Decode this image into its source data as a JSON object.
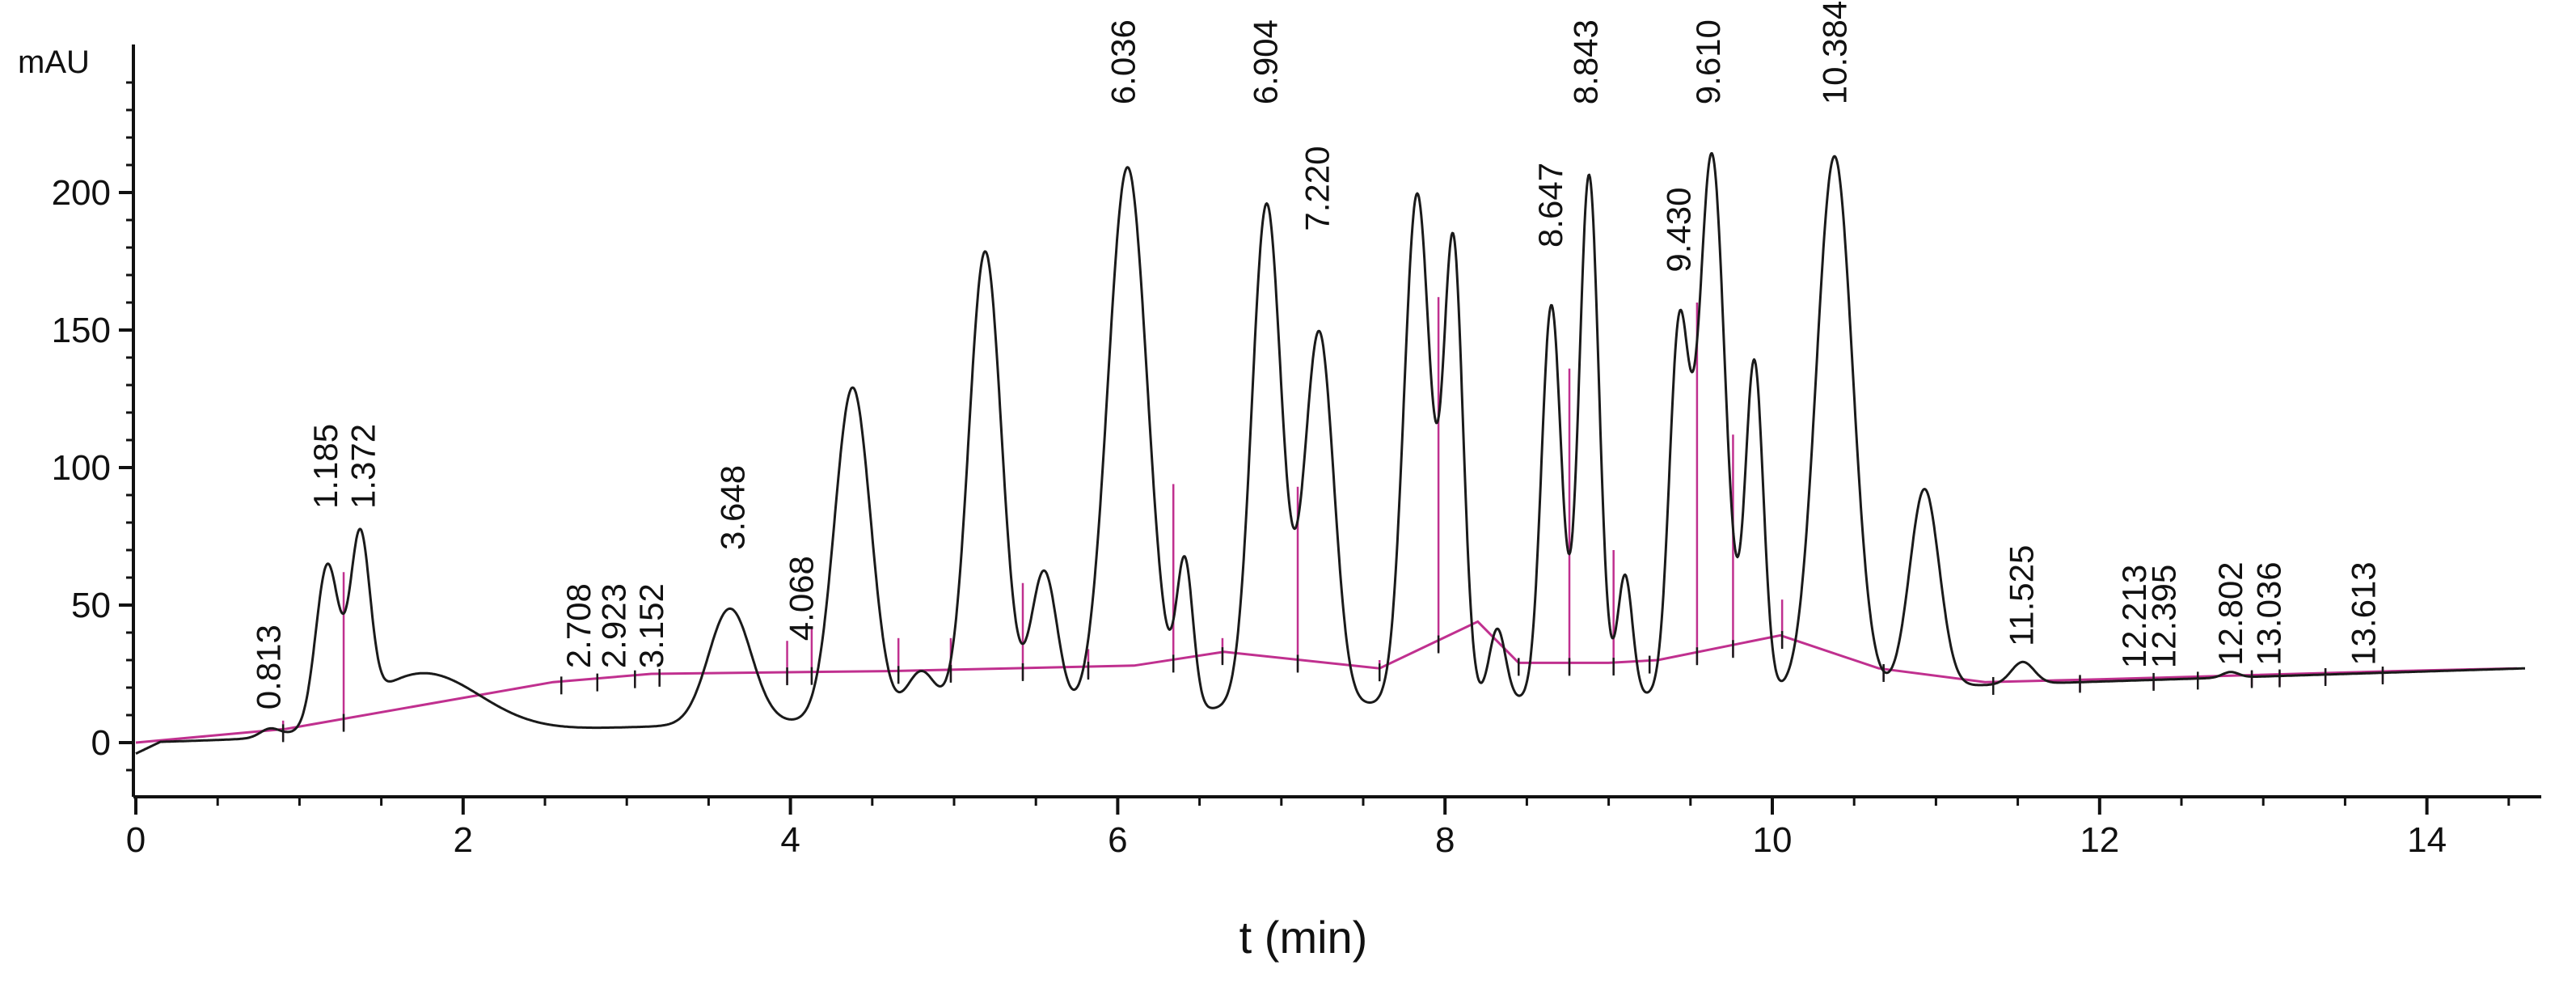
{
  "chart_data": {
    "type": "line",
    "title": "",
    "xlabel": "t (min)",
    "ylabel": "mAU",
    "xlim": [
      0,
      14.6
    ],
    "ylim": [
      -12,
      250
    ],
    "x_ticks": [
      "0",
      "2",
      "4",
      "6",
      "8",
      "10",
      "12",
      "14"
    ],
    "y_ticks": [
      "0",
      "50",
      "100",
      "150",
      "200"
    ],
    "grid": false,
    "legend": "none",
    "colors": {
      "trace": "#1a1a1a",
      "baseline": "#c0308f",
      "axis": "#111111"
    },
    "trace": {
      "baseline_start": 0,
      "baseline_end": 27,
      "peaks": [
        {
          "rt": 0.82,
          "height": 3,
          "width": 0.06
        },
        {
          "rt": 1.17,
          "height": 57,
          "width": 0.07
        },
        {
          "rt": 1.37,
          "height": 62,
          "width": 0.06
        },
        {
          "rt": 1.75,
          "height": 22,
          "width": 0.35
        },
        {
          "rt": 3.63,
          "height": 42,
          "width": 0.13
        },
        {
          "rt": 4.38,
          "height": 121,
          "width": 0.11
        },
        {
          "rt": 4.8,
          "height": 17,
          "width": 0.09
        },
        {
          "rt": 5.19,
          "height": 169,
          "width": 0.1
        },
        {
          "rt": 5.55,
          "height": 52,
          "width": 0.08
        },
        {
          "rt": 6.06,
          "height": 198,
          "width": 0.12
        },
        {
          "rt": 6.41,
          "height": 53,
          "width": 0.05
        },
        {
          "rt": 6.91,
          "height": 183,
          "width": 0.09
        },
        {
          "rt": 7.23,
          "height": 136,
          "width": 0.09
        },
        {
          "rt": 7.83,
          "height": 185,
          "width": 0.08
        },
        {
          "rt": 8.05,
          "height": 166,
          "width": 0.06
        },
        {
          "rt": 8.32,
          "height": 26,
          "width": 0.05
        },
        {
          "rt": 8.65,
          "height": 143,
          "width": 0.06
        },
        {
          "rt": 8.88,
          "height": 190,
          "width": 0.06
        },
        {
          "rt": 9.1,
          "height": 44,
          "width": 0.045
        },
        {
          "rt": 9.43,
          "height": 130,
          "width": 0.06
        },
        {
          "rt": 9.63,
          "height": 196,
          "width": 0.08
        },
        {
          "rt": 9.89,
          "height": 120,
          "width": 0.055
        },
        {
          "rt": 10.38,
          "height": 194,
          "width": 0.11
        },
        {
          "rt": 10.93,
          "height": 72,
          "width": 0.09
        },
        {
          "rt": 11.53,
          "height": 8,
          "width": 0.07
        },
        {
          "rt": 12.8,
          "height": 2,
          "width": 0.05
        }
      ]
    },
    "integration_baseline": [
      [
        0.0,
        0
      ],
      [
        0.92,
        5
      ],
      [
        2.55,
        22
      ],
      [
        3.15,
        25
      ],
      [
        4.6,
        26
      ],
      [
        6.1,
        28
      ],
      [
        6.65,
        33
      ],
      [
        7.6,
        27
      ],
      [
        8.2,
        44
      ],
      [
        8.45,
        29
      ],
      [
        9.0,
        29
      ],
      [
        9.3,
        30
      ],
      [
        10.05,
        39
      ],
      [
        10.65,
        27
      ],
      [
        11.3,
        22
      ],
      [
        12.0,
        23
      ],
      [
        13.8,
        26
      ],
      [
        14.55,
        27
      ]
    ],
    "drop_lines": [
      {
        "t": 0.9,
        "top": 8
      },
      {
        "t": 1.27,
        "top": 62
      },
      {
        "t": 2.6,
        "top": 23
      },
      {
        "t": 2.82,
        "top": 25
      },
      {
        "t": 3.05,
        "top": 25
      },
      {
        "t": 3.2,
        "top": 25
      },
      {
        "t": 3.98,
        "top": 37
      },
      {
        "t": 4.13,
        "top": 42
      },
      {
        "t": 4.66,
        "top": 38
      },
      {
        "t": 4.98,
        "top": 38
      },
      {
        "t": 5.42,
        "top": 58
      },
      {
        "t": 5.82,
        "top": 34
      },
      {
        "t": 6.34,
        "top": 94
      },
      {
        "t": 6.64,
        "top": 38
      },
      {
        "t": 7.1,
        "top": 93
      },
      {
        "t": 7.6,
        "top": 30
      },
      {
        "t": 7.96,
        "top": 162
      },
      {
        "t": 8.45,
        "top": 30
      },
      {
        "t": 8.76,
        "top": 136
      },
      {
        "t": 9.03,
        "top": 70
      },
      {
        "t": 9.25,
        "top": 31
      },
      {
        "t": 9.54,
        "top": 160
      },
      {
        "t": 9.76,
        "top": 112
      },
      {
        "t": 10.06,
        "top": 52
      },
      {
        "t": 10.68,
        "top": 28
      },
      {
        "t": 11.35,
        "top": 22
      },
      {
        "t": 11.88,
        "top": 24
      },
      {
        "t": 12.33,
        "top": 23
      },
      {
        "t": 12.6,
        "top": 24
      },
      {
        "t": 12.93,
        "top": 26
      },
      {
        "t": 13.1,
        "top": 26
      },
      {
        "t": 13.38,
        "top": 27
      },
      {
        "t": 13.73,
        "top": 27
      }
    ],
    "peak_labels": [
      {
        "text": "0.813",
        "t": 0.813,
        "y": 12
      },
      {
        "text": "1.185",
        "t": 1.16,
        "y": 85
      },
      {
        "text": "1.372",
        "t": 1.39,
        "y": 85
      },
      {
        "text": "2.708",
        "t": 2.708,
        "y": 27
      },
      {
        "text": "2.923",
        "t": 2.923,
        "y": 27
      },
      {
        "text": "3.152",
        "t": 3.152,
        "y": 27
      },
      {
        "text": "3.648",
        "t": 3.648,
        "y": 70
      },
      {
        "text": "4.068",
        "t": 4.068,
        "y": 37
      },
      {
        "text": "6.036",
        "t": 6.036,
        "y": 232
      },
      {
        "text": "6.904",
        "t": 6.904,
        "y": 232
      },
      {
        "text": "7.220",
        "t": 7.22,
        "y": 186
      },
      {
        "text": "8.647",
        "t": 8.647,
        "y": 180
      },
      {
        "text": "8.843",
        "t": 8.86,
        "y": 232
      },
      {
        "text": "9.430",
        "t": 9.43,
        "y": 171
      },
      {
        "text": "9.610",
        "t": 9.61,
        "y": 232
      },
      {
        "text": "10.384",
        "t": 10.384,
        "y": 232
      },
      {
        "text": "11.525",
        "t": 11.525,
        "y": 35
      },
      {
        "text": "12.213",
        "t": 12.213,
        "y": 27
      },
      {
        "text": "12.395",
        "t": 12.395,
        "y": 27
      },
      {
        "text": "12.802",
        "t": 12.802,
        "y": 28
      },
      {
        "text": "13.036",
        "t": 13.036,
        "y": 28
      },
      {
        "text": "13.613",
        "t": 13.613,
        "y": 28
      }
    ]
  }
}
